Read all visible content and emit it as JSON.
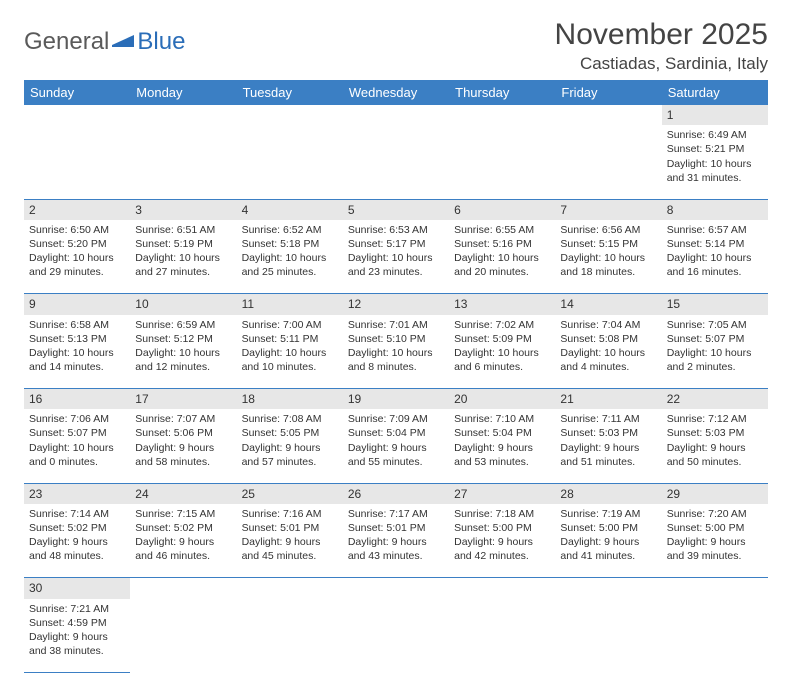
{
  "logo": {
    "text_general": "General",
    "text_blue": "Blue"
  },
  "title": "November 2025",
  "location": "Castiadas, Sardinia, Italy",
  "colors": {
    "header_bg": "#3b7fc4",
    "header_text": "#ffffff",
    "daynum_bg": "#e7e7e7",
    "border": "#3b7fc4",
    "logo_gray": "#5a5a5a",
    "logo_blue": "#2a6db8",
    "body_text": "#333333"
  },
  "day_headers": [
    "Sunday",
    "Monday",
    "Tuesday",
    "Wednesday",
    "Thursday",
    "Friday",
    "Saturday"
  ],
  "weeks": [
    [
      null,
      null,
      null,
      null,
      null,
      null,
      {
        "n": "1",
        "sr": "Sunrise: 6:49 AM",
        "ss": "Sunset: 5:21 PM",
        "dl": "Daylight: 10 hours and 31 minutes."
      }
    ],
    [
      {
        "n": "2",
        "sr": "Sunrise: 6:50 AM",
        "ss": "Sunset: 5:20 PM",
        "dl": "Daylight: 10 hours and 29 minutes."
      },
      {
        "n": "3",
        "sr": "Sunrise: 6:51 AM",
        "ss": "Sunset: 5:19 PM",
        "dl": "Daylight: 10 hours and 27 minutes."
      },
      {
        "n": "4",
        "sr": "Sunrise: 6:52 AM",
        "ss": "Sunset: 5:18 PM",
        "dl": "Daylight: 10 hours and 25 minutes."
      },
      {
        "n": "5",
        "sr": "Sunrise: 6:53 AM",
        "ss": "Sunset: 5:17 PM",
        "dl": "Daylight: 10 hours and 23 minutes."
      },
      {
        "n": "6",
        "sr": "Sunrise: 6:55 AM",
        "ss": "Sunset: 5:16 PM",
        "dl": "Daylight: 10 hours and 20 minutes."
      },
      {
        "n": "7",
        "sr": "Sunrise: 6:56 AM",
        "ss": "Sunset: 5:15 PM",
        "dl": "Daylight: 10 hours and 18 minutes."
      },
      {
        "n": "8",
        "sr": "Sunrise: 6:57 AM",
        "ss": "Sunset: 5:14 PM",
        "dl": "Daylight: 10 hours and 16 minutes."
      }
    ],
    [
      {
        "n": "9",
        "sr": "Sunrise: 6:58 AM",
        "ss": "Sunset: 5:13 PM",
        "dl": "Daylight: 10 hours and 14 minutes."
      },
      {
        "n": "10",
        "sr": "Sunrise: 6:59 AM",
        "ss": "Sunset: 5:12 PM",
        "dl": "Daylight: 10 hours and 12 minutes."
      },
      {
        "n": "11",
        "sr": "Sunrise: 7:00 AM",
        "ss": "Sunset: 5:11 PM",
        "dl": "Daylight: 10 hours and 10 minutes."
      },
      {
        "n": "12",
        "sr": "Sunrise: 7:01 AM",
        "ss": "Sunset: 5:10 PM",
        "dl": "Daylight: 10 hours and 8 minutes."
      },
      {
        "n": "13",
        "sr": "Sunrise: 7:02 AM",
        "ss": "Sunset: 5:09 PM",
        "dl": "Daylight: 10 hours and 6 minutes."
      },
      {
        "n": "14",
        "sr": "Sunrise: 7:04 AM",
        "ss": "Sunset: 5:08 PM",
        "dl": "Daylight: 10 hours and 4 minutes."
      },
      {
        "n": "15",
        "sr": "Sunrise: 7:05 AM",
        "ss": "Sunset: 5:07 PM",
        "dl": "Daylight: 10 hours and 2 minutes."
      }
    ],
    [
      {
        "n": "16",
        "sr": "Sunrise: 7:06 AM",
        "ss": "Sunset: 5:07 PM",
        "dl": "Daylight: 10 hours and 0 minutes."
      },
      {
        "n": "17",
        "sr": "Sunrise: 7:07 AM",
        "ss": "Sunset: 5:06 PM",
        "dl": "Daylight: 9 hours and 58 minutes."
      },
      {
        "n": "18",
        "sr": "Sunrise: 7:08 AM",
        "ss": "Sunset: 5:05 PM",
        "dl": "Daylight: 9 hours and 57 minutes."
      },
      {
        "n": "19",
        "sr": "Sunrise: 7:09 AM",
        "ss": "Sunset: 5:04 PM",
        "dl": "Daylight: 9 hours and 55 minutes."
      },
      {
        "n": "20",
        "sr": "Sunrise: 7:10 AM",
        "ss": "Sunset: 5:04 PM",
        "dl": "Daylight: 9 hours and 53 minutes."
      },
      {
        "n": "21",
        "sr": "Sunrise: 7:11 AM",
        "ss": "Sunset: 5:03 PM",
        "dl": "Daylight: 9 hours and 51 minutes."
      },
      {
        "n": "22",
        "sr": "Sunrise: 7:12 AM",
        "ss": "Sunset: 5:03 PM",
        "dl": "Daylight: 9 hours and 50 minutes."
      }
    ],
    [
      {
        "n": "23",
        "sr": "Sunrise: 7:14 AM",
        "ss": "Sunset: 5:02 PM",
        "dl": "Daylight: 9 hours and 48 minutes."
      },
      {
        "n": "24",
        "sr": "Sunrise: 7:15 AM",
        "ss": "Sunset: 5:02 PM",
        "dl": "Daylight: 9 hours and 46 minutes."
      },
      {
        "n": "25",
        "sr": "Sunrise: 7:16 AM",
        "ss": "Sunset: 5:01 PM",
        "dl": "Daylight: 9 hours and 45 minutes."
      },
      {
        "n": "26",
        "sr": "Sunrise: 7:17 AM",
        "ss": "Sunset: 5:01 PM",
        "dl": "Daylight: 9 hours and 43 minutes."
      },
      {
        "n": "27",
        "sr": "Sunrise: 7:18 AM",
        "ss": "Sunset: 5:00 PM",
        "dl": "Daylight: 9 hours and 42 minutes."
      },
      {
        "n": "28",
        "sr": "Sunrise: 7:19 AM",
        "ss": "Sunset: 5:00 PM",
        "dl": "Daylight: 9 hours and 41 minutes."
      },
      {
        "n": "29",
        "sr": "Sunrise: 7:20 AM",
        "ss": "Sunset: 5:00 PM",
        "dl": "Daylight: 9 hours and 39 minutes."
      }
    ],
    [
      {
        "n": "30",
        "sr": "Sunrise: 7:21 AM",
        "ss": "Sunset: 4:59 PM",
        "dl": "Daylight: 9 hours and 38 minutes."
      },
      null,
      null,
      null,
      null,
      null,
      null
    ]
  ]
}
